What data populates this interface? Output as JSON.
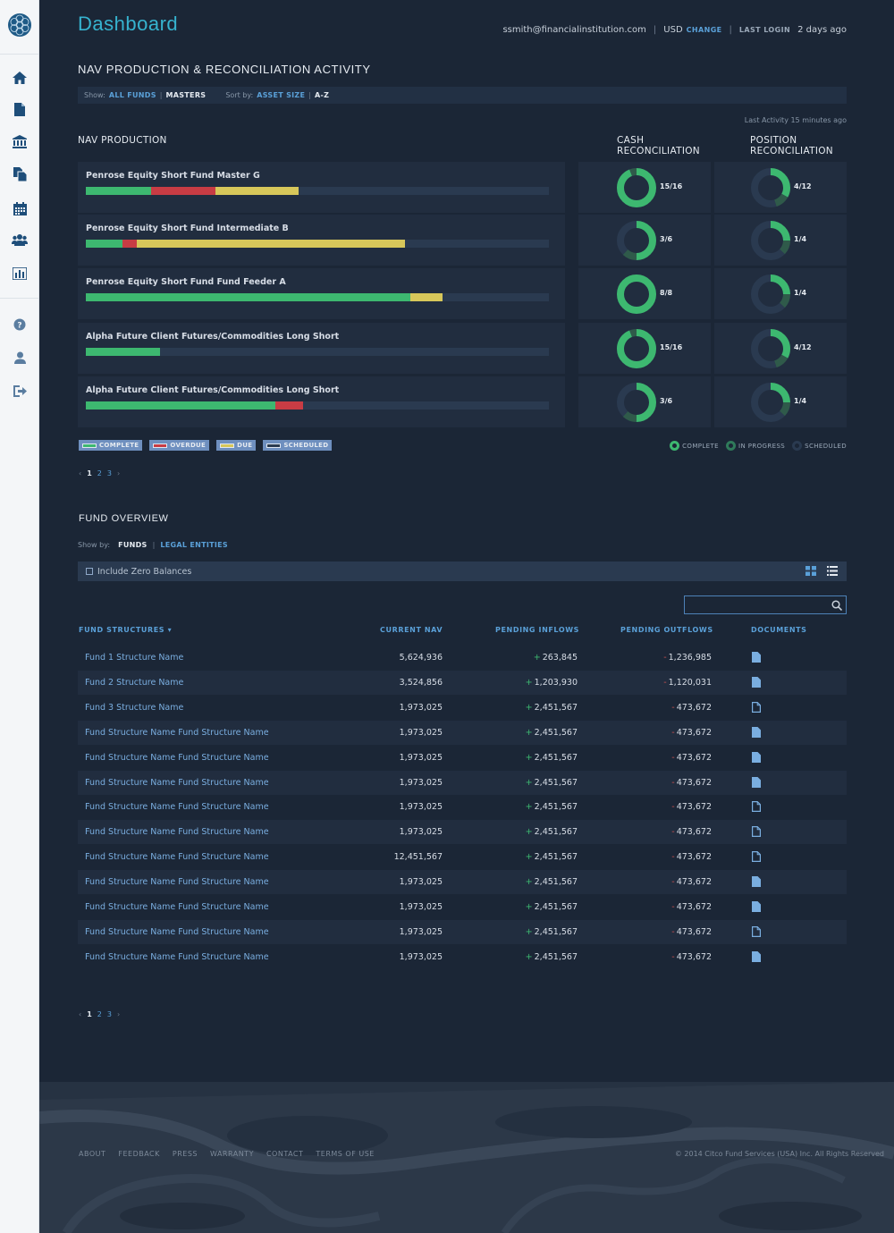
{
  "header": {
    "title": "Dashboard",
    "email": "ssmith@financialinstitution.com",
    "currency": "USD",
    "change_label": "CHANGE",
    "last_login_label": "LAST LOGIN",
    "last_login_value": "2 days ago"
  },
  "sidebar": {
    "items": [
      "home-icon",
      "document-icon",
      "bank-icon",
      "files-icon",
      "calendar-icon",
      "users-icon",
      "chart-icon"
    ],
    "bottom_items": [
      "help-icon",
      "user-icon",
      "logout-icon"
    ]
  },
  "nav_section": {
    "title": "NAV PRODUCTION & RECONCILIATION ACTIVITY",
    "show_label": "Show:",
    "show_options": [
      "ALL FUNDS",
      "MASTERS"
    ],
    "sort_label": "Sort by:",
    "sort_options": [
      "ASSET SIZE",
      "A-Z"
    ],
    "last_activity": "Last Activity 15 minutes ago",
    "production_title": "NAV PRODUCTION",
    "cash_title_1": "CASH",
    "cash_title_2": "RECONCILIATION",
    "position_title_1": "POSITION",
    "position_title_2": "RECONCILIATION",
    "rows": [
      {
        "name": "Penrose Equity Short Fund Master G",
        "complete": 0.14,
        "overdue": 0.14,
        "due": 0.18,
        "cash": "15/16",
        "cash_frac": 0.94,
        "cash_state": "complete",
        "position": "4/12",
        "pos_frac": 0.33,
        "pos_state": "complete"
      },
      {
        "name": "Penrose Equity Short Fund Intermediate B",
        "complete": 0.08,
        "overdue": 0.03,
        "due": 0.58,
        "cash": "3/6",
        "cash_frac": 0.5,
        "cash_state": "complete",
        "position": "1/4",
        "pos_frac": 0.25,
        "pos_state": "complete"
      },
      {
        "name": "Penrose Equity Short Fund Fund Feeder A",
        "complete": 0.7,
        "overdue": 0.0,
        "due": 0.07,
        "cash": "8/8",
        "cash_frac": 1.0,
        "cash_state": "complete",
        "position": "1/4",
        "pos_frac": 0.25,
        "pos_state": "complete"
      },
      {
        "name": "Alpha Future Client Futures/Commodities Long Short",
        "complete": 0.16,
        "overdue": 0.0,
        "due": 0.0,
        "cash": "15/16",
        "cash_frac": 0.94,
        "cash_state": "complete",
        "position": "4/12",
        "pos_frac": 0.33,
        "pos_state": "complete"
      },
      {
        "name": "Alpha Future Client Futures/Commodities Long Short",
        "complete": 0.41,
        "overdue": 0.06,
        "due": 0.0,
        "cash": "3/6",
        "cash_frac": 0.5,
        "cash_state": "complete",
        "position": "1/4",
        "pos_frac": 0.25,
        "pos_state": "complete"
      }
    ],
    "legend_bar": [
      {
        "label": "COMPLETE",
        "color": "#3db870"
      },
      {
        "label": "OVERDUE",
        "color": "#c83c44"
      },
      {
        "label": "DUE",
        "color": "#d7c75a"
      },
      {
        "label": "SCHEDULED",
        "color": "#2a3a50"
      }
    ],
    "legend_donut": [
      {
        "label": "COMPLETE",
        "color": "#3db870"
      },
      {
        "label": "IN PROGRESS",
        "color": "#2f7a5a"
      },
      {
        "label": "SCHEDULED",
        "color": "#2a3a50"
      }
    ],
    "pager": [
      "1",
      "2",
      "3"
    ]
  },
  "fund_overview": {
    "title": "FUND OVERVIEW",
    "show_label": "Show by:",
    "show_options": [
      "FUNDS",
      "LEGAL ENTITIES"
    ],
    "include_zero": "Include Zero Balances",
    "search_placeholder": "",
    "columns": [
      "FUND STRUCTURES",
      "CURRENT NAV",
      "PENDING INFLOWS",
      "PENDING OUTFLOWS",
      "DOCUMENTS"
    ],
    "rows": [
      {
        "name": "Fund 1 Structure Name",
        "nav": "5,624,936",
        "inflow": "263,845",
        "outflow": "1,236,985",
        "doc": "filled"
      },
      {
        "name": "Fund 2 Structure Name",
        "nav": "3,524,856",
        "inflow": "1,203,930",
        "outflow": "1,120,031",
        "doc": "filled"
      },
      {
        "name": "Fund 3 Structure Name",
        "nav": "1,973,025",
        "inflow": "2,451,567",
        "outflow": "473,672",
        "doc": "outline"
      },
      {
        "name": "Fund Structure Name Fund Structure Name",
        "nav": "1,973,025",
        "inflow": "2,451,567",
        "outflow": "473,672",
        "doc": "filled"
      },
      {
        "name": "Fund Structure Name Fund Structure Name",
        "nav": "1,973,025",
        "inflow": "2,451,567",
        "outflow": "473,672",
        "doc": "filled"
      },
      {
        "name": "Fund Structure Name Fund Structure Name",
        "nav": "1,973,025",
        "inflow": "2,451,567",
        "outflow": "473,672",
        "doc": "filled"
      },
      {
        "name": "Fund Structure Name Fund Structure Name",
        "nav": "1,973,025",
        "inflow": "2,451,567",
        "outflow": "473,672",
        "doc": "outline"
      },
      {
        "name": "Fund Structure Name Fund Structure Name",
        "nav": "1,973,025",
        "inflow": "2,451,567",
        "outflow": "473,672",
        "doc": "outline"
      },
      {
        "name": "Fund Structure Name Fund Structure Name",
        "nav": "12,451,567",
        "inflow": "2,451,567",
        "outflow": "473,672",
        "doc": "outline"
      },
      {
        "name": "Fund Structure Name Fund Structure Name",
        "nav": "1,973,025",
        "inflow": "2,451,567",
        "outflow": "473,672",
        "doc": "filled"
      },
      {
        "name": "Fund Structure Name Fund Structure Name",
        "nav": "1,973,025",
        "inflow": "2,451,567",
        "outflow": "473,672",
        "doc": "filled"
      },
      {
        "name": "Fund Structure Name Fund Structure Name",
        "nav": "1,973,025",
        "inflow": "2,451,567",
        "outflow": "473,672",
        "doc": "outline"
      },
      {
        "name": "Fund Structure Name Fund Structure Name",
        "nav": "1,973,025",
        "inflow": "2,451,567",
        "outflow": "473,672",
        "doc": "filled"
      }
    ],
    "pager": [
      "1",
      "2",
      "3"
    ]
  },
  "footer": {
    "links": [
      "ABOUT",
      "FEEDBACK",
      "PRESS",
      "WARRANTY",
      "CONTACT",
      "TERMS OF USE"
    ],
    "copyright": "© 2014 Citco Fund Services (USA) Inc. All Rights Reserved"
  }
}
